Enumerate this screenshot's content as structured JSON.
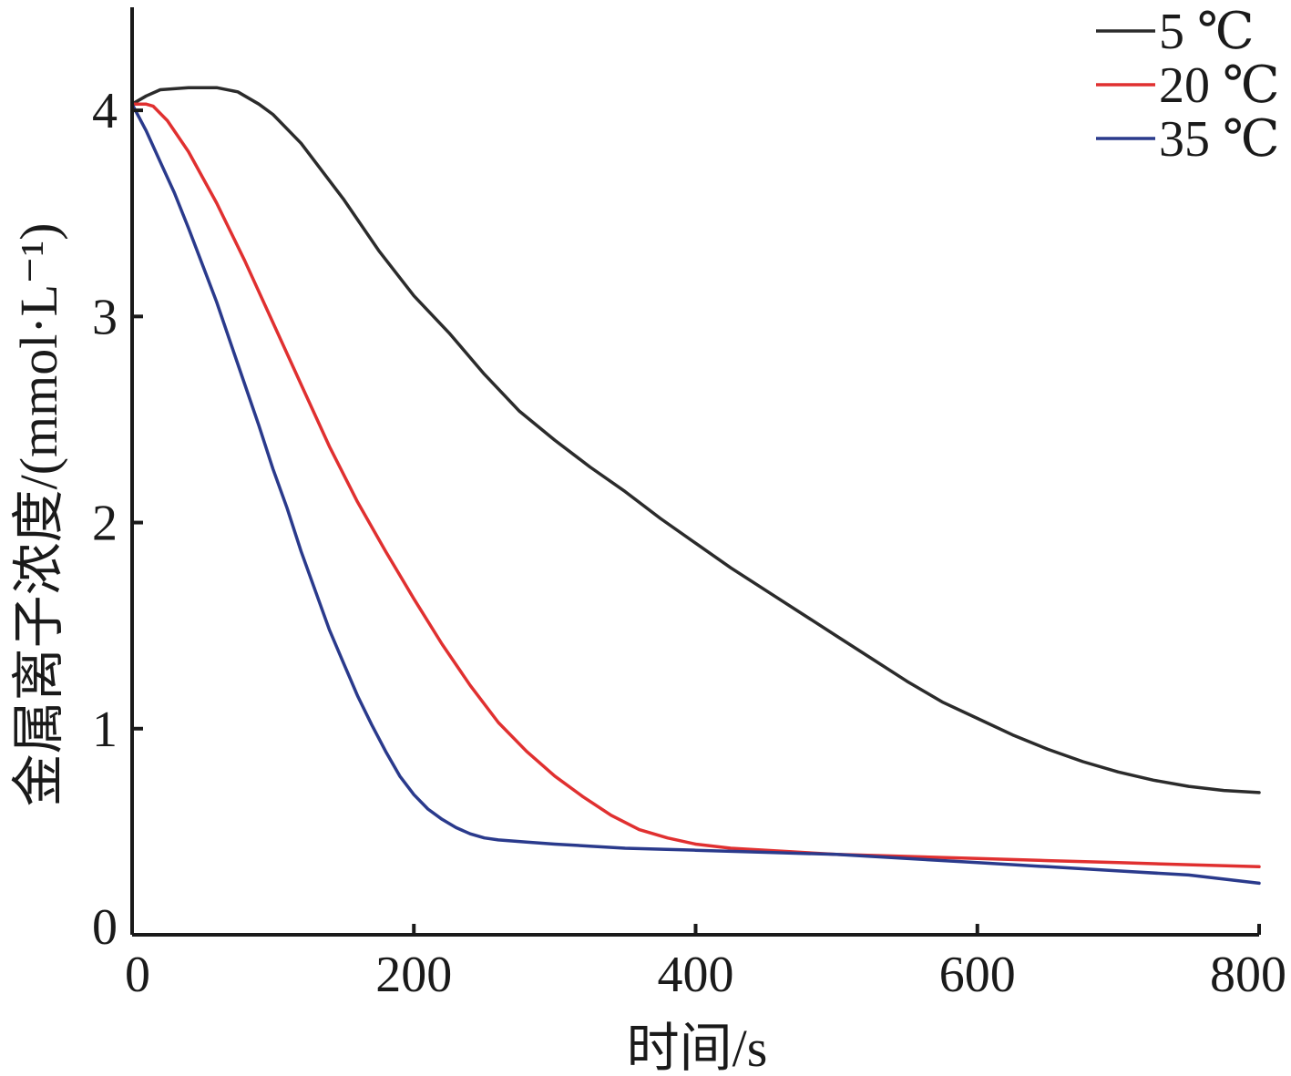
{
  "chart_data": {
    "type": "line",
    "xlabel": "时间/s",
    "ylabel": "金属离子浓度/(mmol·L⁻¹)",
    "xlim": [
      0,
      800
    ],
    "ylim": [
      0,
      4.5
    ],
    "x_ticks": [
      "0",
      "200",
      "400",
      "600",
      "800"
    ],
    "y_ticks": [
      "0",
      "1",
      "2",
      "3",
      "4"
    ],
    "legend_position": "top-right",
    "grid": false,
    "series": [
      {
        "name": "5 ℃",
        "color": "#2b2b2b",
        "x": [
          0,
          10,
          20,
          40,
          60,
          75,
          90,
          100,
          120,
          150,
          175,
          200,
          225,
          250,
          275,
          300,
          325,
          350,
          375,
          400,
          425,
          450,
          475,
          500,
          525,
          550,
          575,
          600,
          625,
          650,
          675,
          700,
          725,
          750,
          775,
          800
        ],
        "y": [
          4.03,
          4.07,
          4.1,
          4.11,
          4.11,
          4.09,
          4.03,
          3.98,
          3.84,
          3.57,
          3.32,
          3.1,
          2.92,
          2.72,
          2.54,
          2.4,
          2.27,
          2.15,
          2.02,
          1.9,
          1.78,
          1.67,
          1.56,
          1.45,
          1.34,
          1.23,
          1.13,
          1.05,
          0.97,
          0.9,
          0.84,
          0.79,
          0.75,
          0.72,
          0.7,
          0.69
        ]
      },
      {
        "name": "20 ℃",
        "color": "#e03030",
        "x": [
          0,
          10,
          15,
          25,
          40,
          60,
          80,
          100,
          120,
          140,
          160,
          180,
          200,
          220,
          240,
          260,
          280,
          300,
          320,
          340,
          360,
          380,
          400,
          425,
          450,
          475,
          500,
          550,
          600,
          650,
          700,
          750,
          800
        ],
        "y": [
          4.03,
          4.03,
          4.02,
          3.95,
          3.8,
          3.55,
          3.27,
          2.97,
          2.67,
          2.37,
          2.1,
          1.86,
          1.63,
          1.41,
          1.21,
          1.03,
          0.89,
          0.77,
          0.67,
          0.58,
          0.51,
          0.47,
          0.44,
          0.42,
          0.41,
          0.4,
          0.39,
          0.38,
          0.37,
          0.36,
          0.35,
          0.34,
          0.33
        ]
      },
      {
        "name": "35 ℃",
        "color": "#2a3a8c",
        "x": [
          0,
          10,
          20,
          30,
          40,
          50,
          60,
          70,
          80,
          90,
          100,
          110,
          120,
          130,
          140,
          150,
          160,
          170,
          180,
          190,
          200,
          210,
          220,
          230,
          240,
          250,
          260,
          280,
          300,
          325,
          350,
          400,
          450,
          500,
          550,
          600,
          650,
          700,
          750,
          800
        ],
        "y": [
          4.03,
          3.9,
          3.75,
          3.6,
          3.43,
          3.25,
          3.07,
          2.87,
          2.67,
          2.47,
          2.26,
          2.07,
          1.86,
          1.67,
          1.48,
          1.32,
          1.16,
          1.02,
          0.89,
          0.77,
          0.68,
          0.61,
          0.56,
          0.52,
          0.49,
          0.47,
          0.46,
          0.45,
          0.44,
          0.43,
          0.42,
          0.41,
          0.4,
          0.39,
          0.37,
          0.35,
          0.33,
          0.31,
          0.29,
          0.25
        ]
      }
    ]
  }
}
